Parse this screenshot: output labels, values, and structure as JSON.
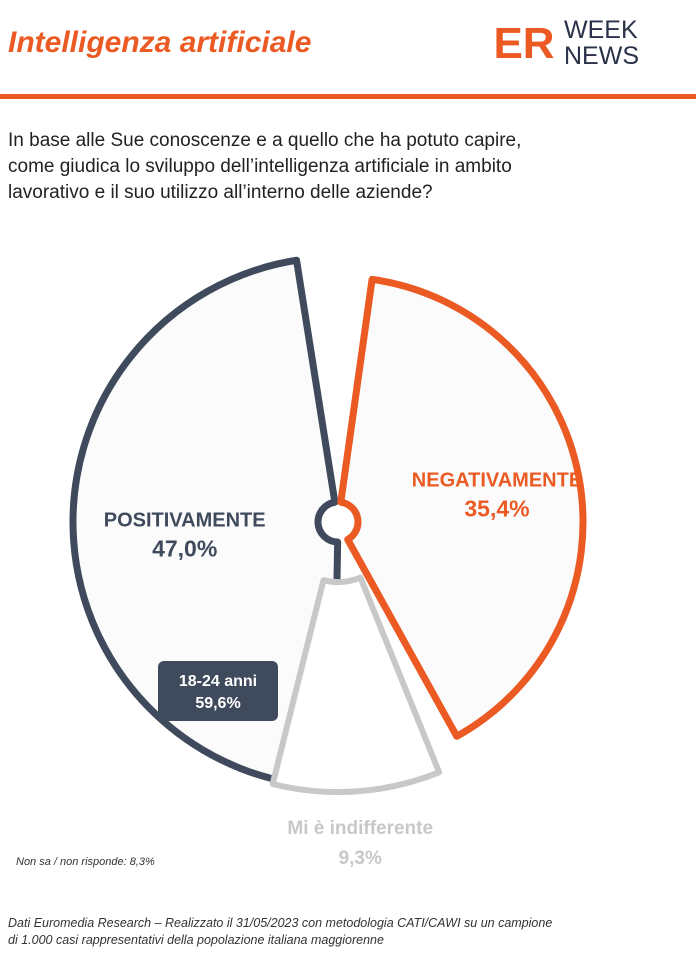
{
  "header": {
    "title": "Intelligenza artificiale",
    "logo_top": "WEEK",
    "logo_bottom": "NEWS",
    "logo_mark": "ER"
  },
  "question": {
    "line1": "In base alle Sue conoscenze e a quello che ha potuto capire,",
    "line2": "come giudica lo sviluppo dell’intelligenza artificiale in ambito",
    "line3": "lavorativo e il suo utilizzo all’interno delle aziende?"
  },
  "chart_data": {
    "type": "pie",
    "slices": [
      {
        "label": "POSITIVAMENTE",
        "value": 47.0,
        "display": "47,0%",
        "color": "#3f4a5c"
      },
      {
        "label": "NEGATIVAMENTE",
        "value": 35.4,
        "display": "35,4%",
        "color": "#ec5a24"
      },
      {
        "label": "Mi è indifferente",
        "value": 9.3,
        "display": "9,3%",
        "color": "#c8c8c8"
      }
    ],
    "callout": {
      "label": "18-24 anni",
      "value": "59,6%"
    }
  },
  "notes": {
    "no_answer": "Non sa / non risponde: 8,3%"
  },
  "footer": {
    "line1": "Dati Euromedia Research – Realizzato il 31/05/2023 con metodologia CATI/CAWI su un campione",
    "line2": "di 1.000 casi rappresentativi della popolazione italiana maggiorenne"
  }
}
